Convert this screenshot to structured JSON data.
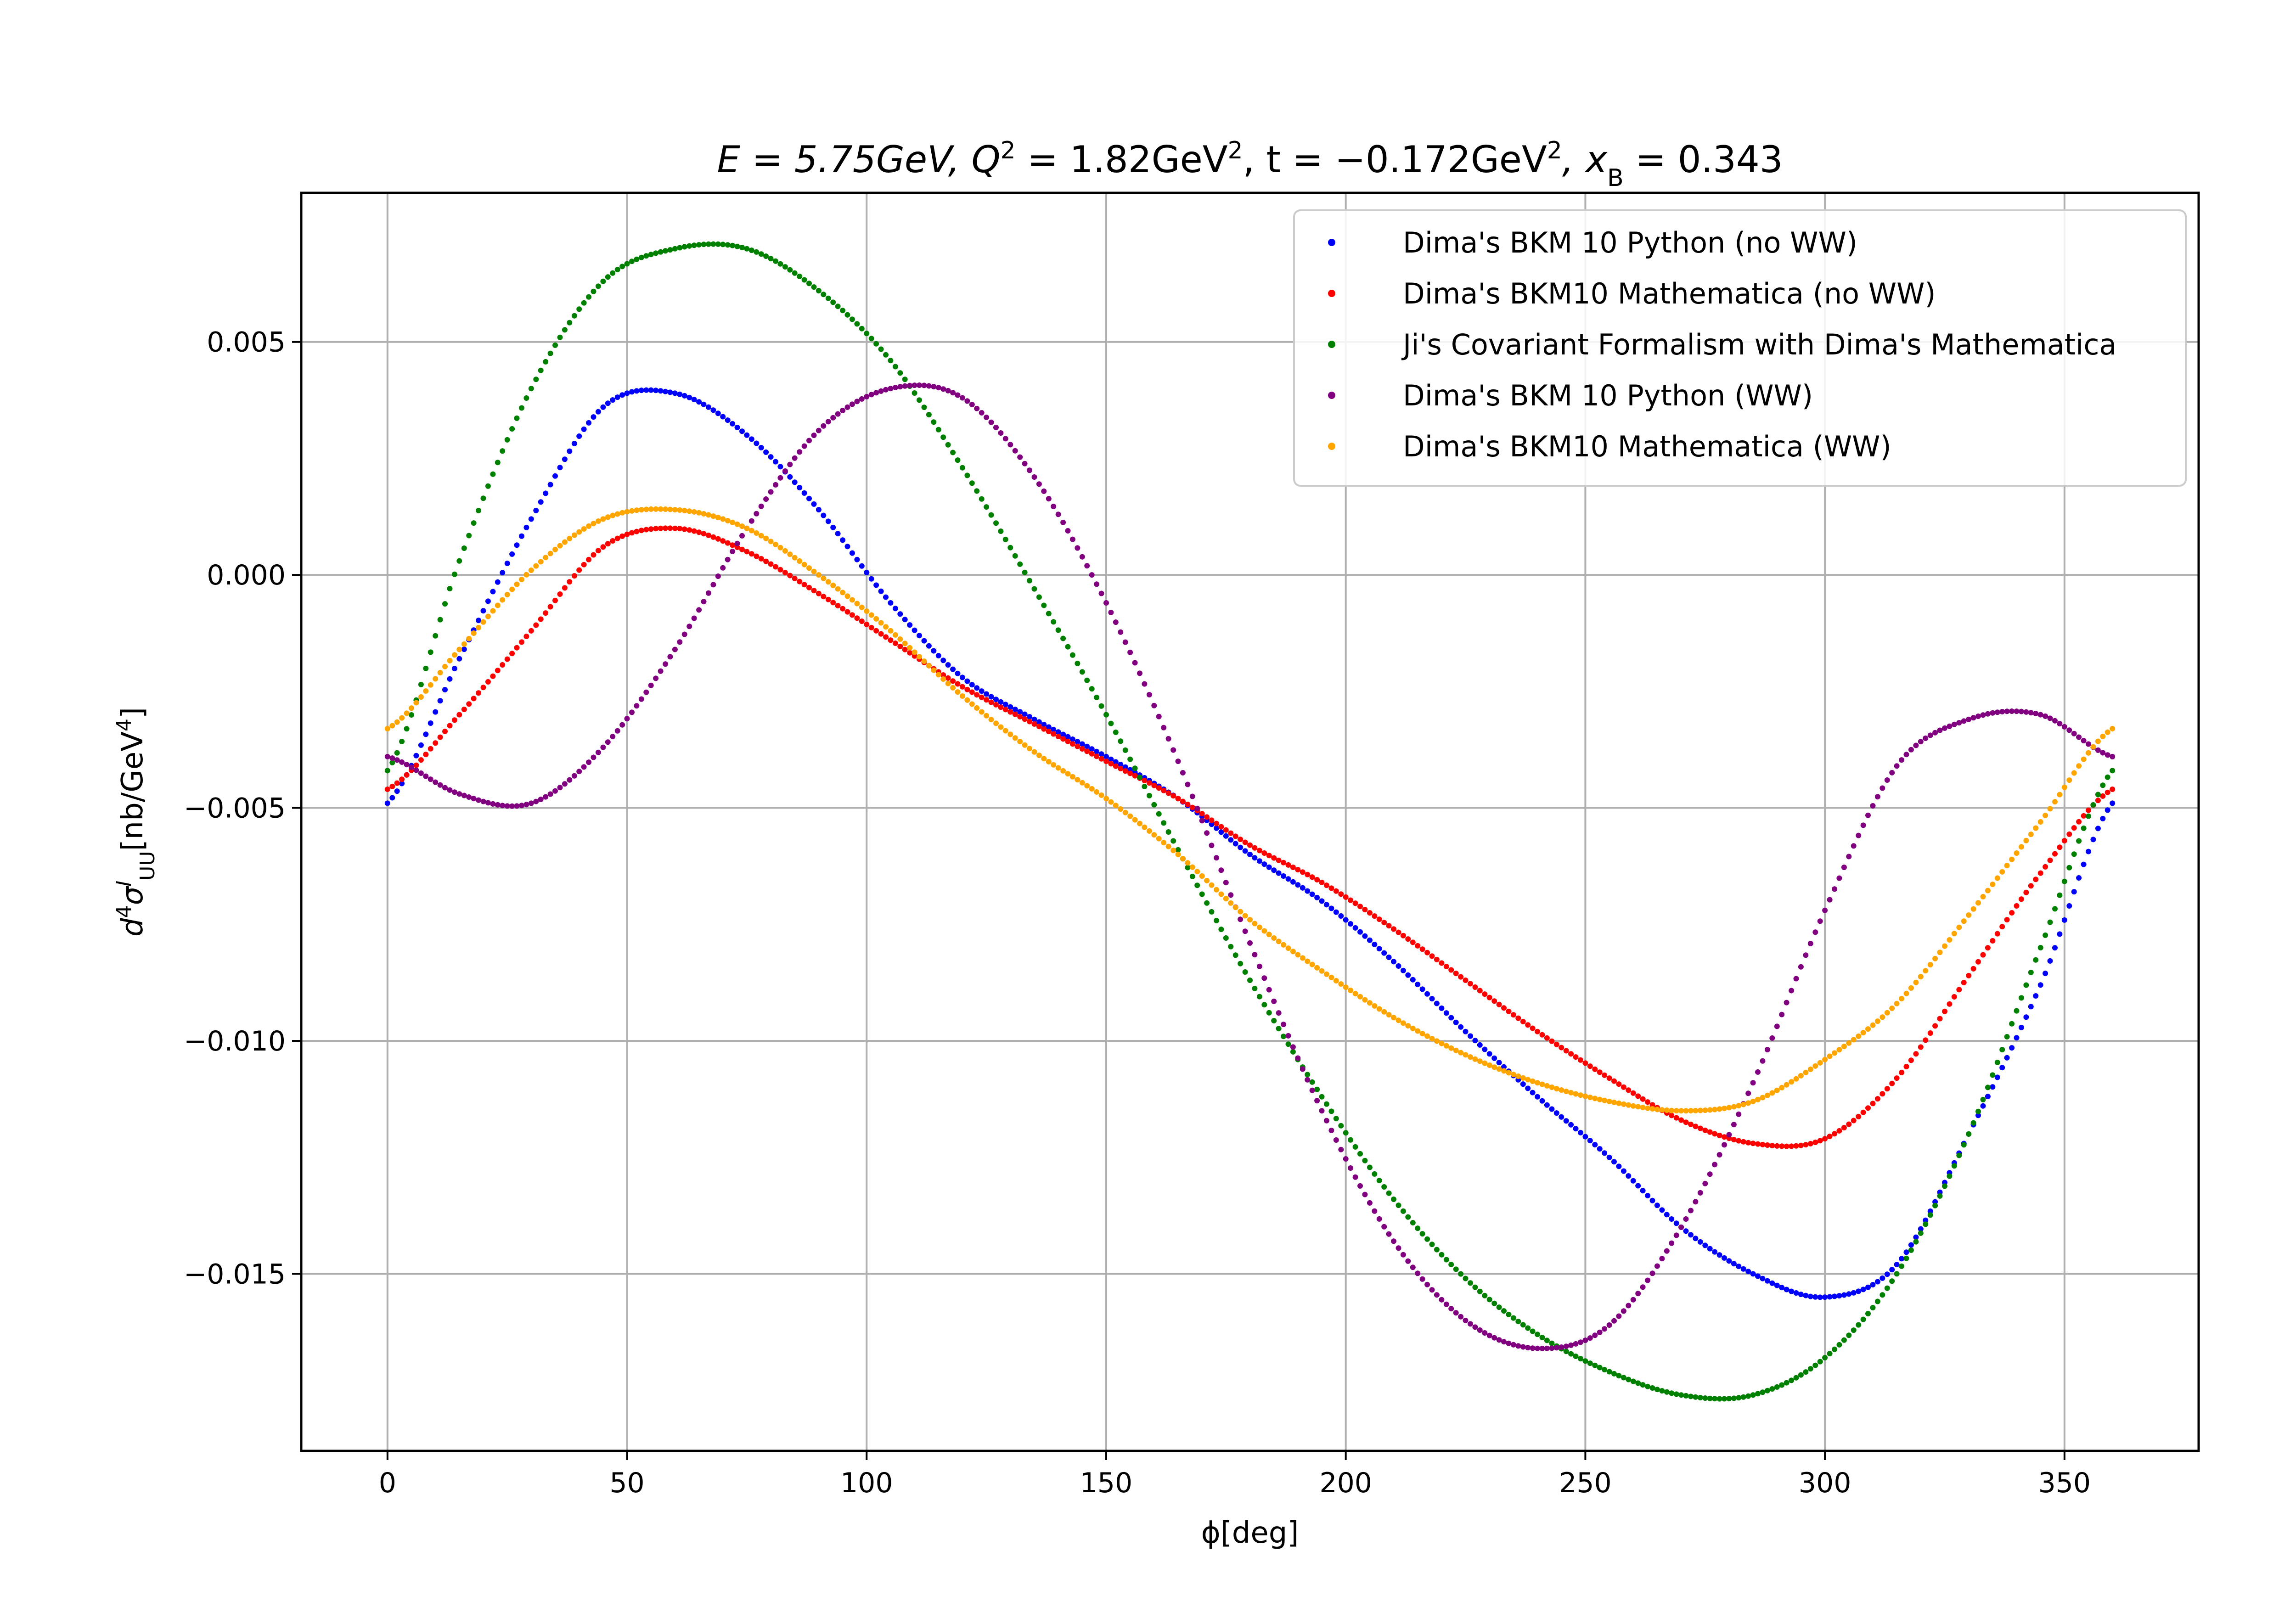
{
  "chart_data": {
    "type": "scatter",
    "title": "E=5.75GeV, Q²=1.82GeV², t=−0.172GeV², x_B=0.343",
    "title_parts": {
      "e": "E = 5.75GeV, ",
      "q": "Q",
      "q_exp": "2",
      "q_rest": " = 1.82GeV",
      "q_unit_exp": "2",
      "t": ", t = −0.172GeV",
      "t_exp": "2",
      "xb": ", x",
      "xb_sub": "B",
      "xb_rest": " = 0.343"
    },
    "xlabel": "ϕ[deg]",
    "ylabel": "d⁴σ^I_UU[nb/GeV⁴]",
    "ylabel_parts": {
      "d": "d",
      "d_exp": "4",
      "sigma": "σ",
      "sigma_sup": "I",
      "sigma_sub": "UU",
      "unit": "[nb/GeV",
      "unit_exp": "4",
      "unit_close": "]"
    },
    "xlim": [
      -18,
      378
    ],
    "ylim": [
      -0.0188,
      0.0082
    ],
    "xticks": [
      0,
      50,
      100,
      150,
      200,
      250,
      300,
      350
    ],
    "xtick_labels": [
      "0",
      "50",
      "100",
      "150",
      "200",
      "250",
      "300",
      "350"
    ],
    "yticks": [
      0.005,
      0.0,
      -0.005,
      -0.01,
      -0.015
    ],
    "ytick_labels": [
      "0.005",
      "0.000",
      "−0.005",
      "−0.010",
      "−0.015"
    ],
    "grid": true,
    "legend_position": "top-right",
    "series": [
      {
        "name": "Dima's BKM 10 Python (no WW)",
        "color": "#0000ff",
        "x": [
          0,
          15,
          30,
          45,
          60,
          75,
          90,
          105,
          120,
          135,
          150,
          165,
          180,
          195,
          210,
          225,
          240,
          255,
          270,
          285,
          300,
          315,
          330,
          345,
          360
        ],
        "y": [
          -0.0049,
          -0.0018,
          0.0012,
          0.0036,
          0.0039,
          0.003,
          0.0014,
          -0.0006,
          -0.0022,
          -0.0031,
          -0.0039,
          -0.0048,
          -0.006,
          -0.007,
          -0.0083,
          -0.0098,
          -0.0112,
          -0.0125,
          -0.014,
          -0.015,
          -0.0155,
          -0.0148,
          -0.012,
          -0.0088,
          -0.0049
        ]
      },
      {
        "name": "Dima's BKM10 Mathematica (no WW)",
        "color": "#ff0000",
        "x": [
          0,
          15,
          30,
          45,
          60,
          75,
          90,
          105,
          120,
          135,
          150,
          165,
          180,
          195,
          210,
          225,
          240,
          255,
          270,
          285,
          300,
          315,
          330,
          345,
          360
        ],
        "y": [
          -0.0046,
          -0.003,
          -0.0012,
          0.0006,
          0.001,
          0.0005,
          -0.0004,
          -0.0014,
          -0.0024,
          -0.0032,
          -0.004,
          -0.0048,
          -0.0058,
          -0.0066,
          -0.0076,
          -0.0087,
          -0.0098,
          -0.0108,
          -0.0117,
          -0.0122,
          -0.0121,
          -0.0108,
          -0.0086,
          -0.0064,
          -0.0046
        ]
      },
      {
        "name": "Ji's Covariant Formalism with Dima's Mathematica",
        "color": "#008000",
        "x": [
          0,
          15,
          30,
          45,
          60,
          75,
          90,
          105,
          120,
          135,
          150,
          165,
          180,
          195,
          210,
          225,
          240,
          255,
          270,
          285,
          300,
          315,
          330,
          345,
          360
        ],
        "y": [
          -0.0042,
          0.0003,
          0.004,
          0.0063,
          0.007,
          0.007,
          0.0061,
          0.0046,
          0.0023,
          -0.0003,
          -0.003,
          -0.0059,
          -0.0087,
          -0.0112,
          -0.0134,
          -0.0151,
          -0.0163,
          -0.0171,
          -0.0176,
          -0.0176,
          -0.0168,
          -0.015,
          -0.012,
          -0.008,
          -0.0042
        ]
      },
      {
        "name": "Dima's BKM 10 Python (WW)",
        "color": "#800080",
        "x": [
          0,
          15,
          30,
          45,
          60,
          75,
          90,
          105,
          120,
          135,
          150,
          165,
          180,
          195,
          210,
          225,
          240,
          255,
          270,
          285,
          300,
          315,
          330,
          345,
          360
        ],
        "y": [
          -0.0039,
          -0.0047,
          -0.0049,
          -0.0037,
          -0.0016,
          0.001,
          0.0031,
          0.004,
          0.0038,
          0.0021,
          -0.0006,
          -0.004,
          -0.0079,
          -0.0115,
          -0.0143,
          -0.016,
          -0.0166,
          -0.0161,
          -0.014,
          -0.0109,
          -0.0072,
          -0.0041,
          -0.0031,
          -0.003,
          -0.0039
        ]
      },
      {
        "name": "Dima's BKM10 Mathematica (WW)",
        "color": "#ffa500",
        "x": [
          0,
          15,
          30,
          45,
          60,
          75,
          90,
          105,
          120,
          135,
          150,
          165,
          180,
          195,
          210,
          225,
          240,
          255,
          270,
          285,
          300,
          315,
          330,
          345,
          360
        ],
        "y": [
          -0.0033,
          -0.0016,
          0.0001,
          0.0012,
          0.0014,
          0.001,
          0.0,
          -0.0012,
          -0.0026,
          -0.0038,
          -0.0048,
          -0.006,
          -0.0074,
          -0.0085,
          -0.0095,
          -0.0103,
          -0.0109,
          -0.0113,
          -0.0115,
          -0.0113,
          -0.0104,
          -0.0092,
          -0.0073,
          -0.0053,
          -0.0033
        ]
      }
    ]
  }
}
